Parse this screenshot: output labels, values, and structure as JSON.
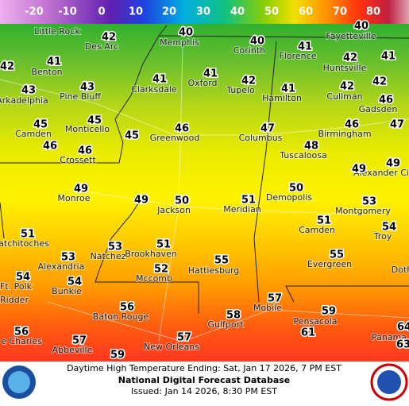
{
  "legend": {
    "ticks": [
      -20,
      -10,
      0,
      10,
      20,
      30,
      40,
      50,
      60,
      70,
      80
    ]
  },
  "temperatures": [
    40,
    42,
    40,
    40,
    42,
    41,
    41,
    41,
    42,
    41,
    43,
    41,
    42,
    41,
    42,
    42,
    43,
    46,
    45,
    45,
    46,
    47,
    46,
    47,
    46,
    45,
    48,
    46,
    49,
    49,
    49,
    49,
    50,
    51,
    50,
    53,
    51,
    54,
    51,
    53,
    51,
    53,
    52,
    55,
    55,
    54,
    54,
    56,
    57,
    59,
    58,
    56,
    61,
    57,
    57,
    59,
    64,
    63
  ],
  "cities": [
    "Little Rock",
    "Des Arc",
    "Memphis",
    "Corinth",
    "Fayetteville",
    "Benton",
    "Oxford",
    "Tupelo",
    "Florence",
    "Huntsville",
    "Pine Bluff",
    "Clarksdale",
    "Hamilton",
    "Cullman",
    "Gadsden",
    "Arkadelphia",
    "Monticello",
    "Greenwood",
    "Columbus",
    "Birmingham",
    "Camden",
    "Crossett",
    "Tuscaloosa",
    "Alexander Ci",
    "Monroe",
    "Jackson",
    "Meridian",
    "Demopolis",
    "Montgomery",
    "Camden",
    "Troy",
    "atchitoches",
    "Natchez",
    "Brookhaven",
    "Alexandria",
    "Mccomb",
    "Hattiesburg",
    "Evergreen",
    "Ft. Polk",
    "Bunkie",
    "Ridder",
    "Baton Rouge",
    "Mobile",
    "Pensacola",
    "Gulfport",
    "e Charles",
    "Abbeville",
    "New Orleans",
    "Panama",
    "Doth"
  ],
  "footer": {
    "caption": "Daytime High Temperature Ending: Sat, Jan 17 2026, 7 PM EST",
    "title": "National Digital Forecast Database",
    "issued": "Issued: Jan 14 2026, 8:30 PM EST"
  }
}
